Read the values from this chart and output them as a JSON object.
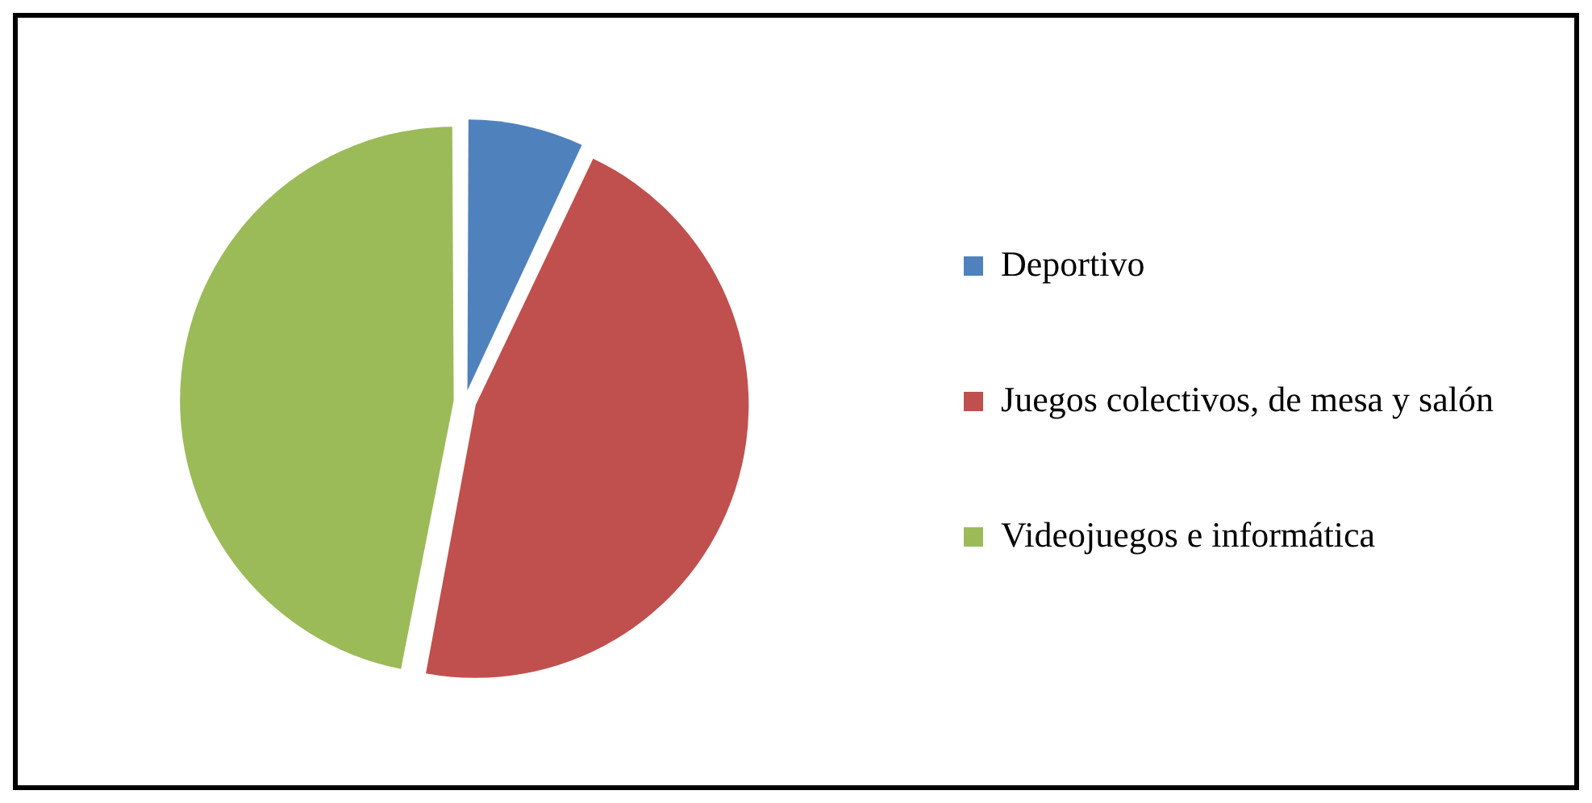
{
  "chart_data": {
    "type": "pie",
    "categories": [
      "Deportivo",
      "Juegos colectivos, de mesa y salón",
      "Videojuegos e informática"
    ],
    "values": [
      7,
      46,
      47
    ],
    "colors": [
      "#4f81bd",
      "#c0504d",
      "#9bbb59"
    ],
    "legend": "right"
  }
}
